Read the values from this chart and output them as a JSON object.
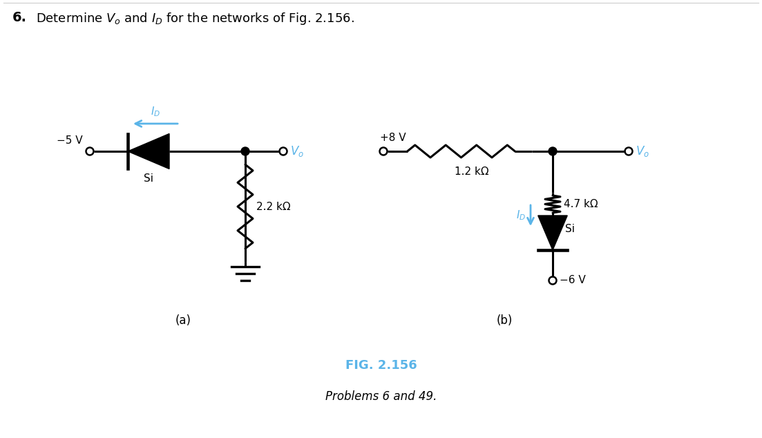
{
  "title_number": "6.",
  "title_text": "Determine $V_o$ and $I_D$ for the networks of Fig. 2.156.",
  "fig_label": "FIG. 2.156",
  "fig_caption": "Problems 6 and 49.",
  "label_a": "(a)",
  "label_b": "(b)",
  "circuit_a": {
    "neg5v_label": "−5 V",
    "vo_label": "$V_o$",
    "si_label": "Si",
    "id_label": "$I_D$",
    "resistor_label": "2.2 kΩ"
  },
  "circuit_b": {
    "pos8v_label": "+8 V",
    "vo_label": "$V_o$",
    "si_label": "Si",
    "id_label": "$I_D$",
    "resistor1_label": "1.2 kΩ",
    "resistor2_label": "4.7 kΩ",
    "neg6v_label": "−6 V"
  },
  "colors": {
    "background": "#ffffff",
    "line": "#000000",
    "blue": "#5ab4e8",
    "text": "#000000"
  },
  "figsize": [
    11.03,
    6.34
  ],
  "dpi": 100
}
